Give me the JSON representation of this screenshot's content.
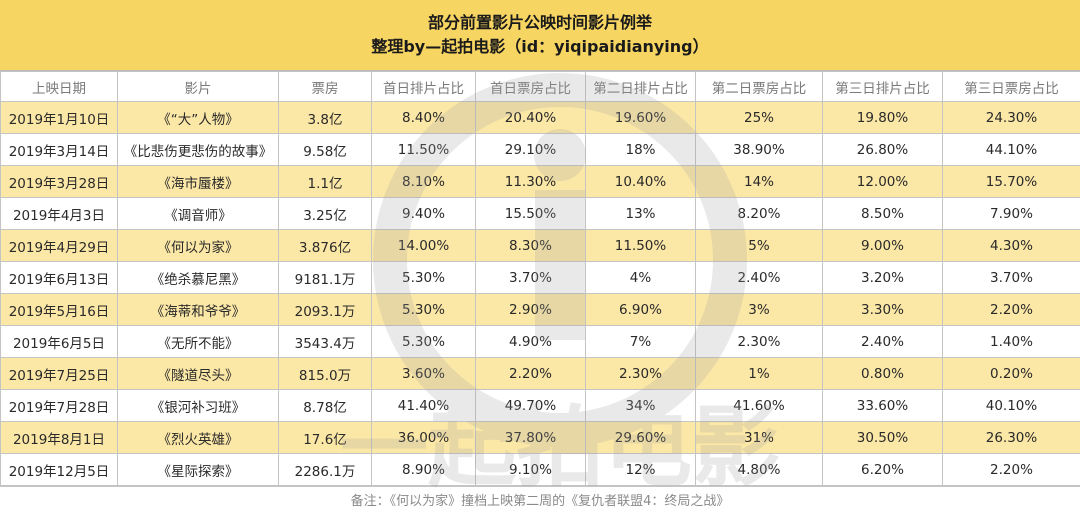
{
  "header": {
    "title": "部分前置影片公映时间影片例举",
    "subtitle": "整理by—起拍电影（id：yiqipaidianying）"
  },
  "table": {
    "columns": [
      "上映日期",
      "影片",
      "票房",
      "首日排片占比",
      "首日票房占比",
      "第二日排片占比",
      "第二日票房占比",
      "第三日排片占比",
      "第三日票房占比"
    ],
    "rows": [
      [
        "2019年1月10日",
        "《“大”人物》",
        "3.8亿",
        "8.40%",
        "20.40%",
        "19.60%",
        "25%",
        "19.80%",
        "24.30%"
      ],
      [
        "2019年3月14日",
        "《比悲伤更悲伤的故事》",
        "9.58亿",
        "11.50%",
        "29.10%",
        "18%",
        "38.90%",
        "26.80%",
        "44.10%"
      ],
      [
        "2019年3月28日",
        "《海市蜃楼》",
        "1.1亿",
        "8.10%",
        "11.30%",
        "10.40%",
        "14%",
        "12.00%",
        "15.70%"
      ],
      [
        "2019年4月3日",
        "《调音师》",
        "3.25亿",
        "9.40%",
        "15.50%",
        "13%",
        "8.20%",
        "8.50%",
        "7.90%"
      ],
      [
        "2019年4月29日",
        "《何以为家》",
        "3.876亿",
        "14.00%",
        "8.30%",
        "11.50%",
        "5%",
        "9.00%",
        "4.30%"
      ],
      [
        "2019年6月13日",
        "《绝杀慕尼黑》",
        "9181.1万",
        "5.30%",
        "3.70%",
        "4%",
        "2.40%",
        "3.20%",
        "3.70%"
      ],
      [
        "2019年5月16日",
        "《海蒂和爷爷》",
        "2093.1万",
        "5.30%",
        "2.90%",
        "6.90%",
        "3%",
        "3.30%",
        "2.20%"
      ],
      [
        "2019年6月5日",
        "《无所不能》",
        "3543.4万",
        "5.30%",
        "4.90%",
        "7%",
        "2.30%",
        "2.40%",
        "1.40%"
      ],
      [
        "2019年7月25日",
        "《隧道尽头》",
        "815.0万",
        "3.60%",
        "2.20%",
        "2.30%",
        "1%",
        "0.80%",
        "0.20%"
      ],
      [
        "2019年7月28日",
        "《银河补习班》",
        "8.78亿",
        "41.40%",
        "49.70%",
        "34%",
        "41.60%",
        "33.60%",
        "40.10%"
      ],
      [
        "2019年8月1日",
        "《烈火英雄》",
        "17.6亿",
        "36.00%",
        "37.80%",
        "29.60%",
        "31%",
        "30.50%",
        "26.30%"
      ],
      [
        "2019年12月5日",
        "《星际探索》",
        "2286.1万",
        "8.90%",
        "9.10%",
        "12%",
        "4.80%",
        "6.20%",
        "2.20%"
      ]
    ]
  },
  "footer": {
    "note": "备注：《何以为家》撞档上映第二周的《复仇者联盟4：终局之战》"
  },
  "watermark": {
    "text": "一起拍电影",
    "color": "#a0a0a0"
  },
  "colors": {
    "header_bg": "#F7D562",
    "stripe_bg": "#FBE7A6"
  }
}
